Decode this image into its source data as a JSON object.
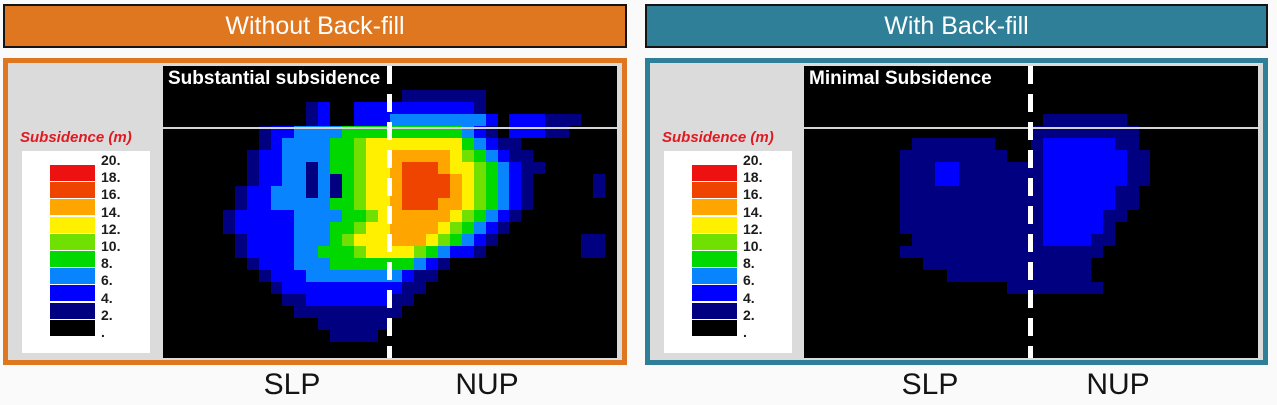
{
  "panels": [
    {
      "header": "Without Back-fill",
      "accent": "#de771f",
      "overlay_label": "Substantial subsidence",
      "axis_left": "SLP",
      "axis_right": "NUP"
    },
    {
      "header": "With Back-fill",
      "accent": "#2f7f99",
      "overlay_label": "Minimal Subsidence",
      "axis_left": "SLP",
      "axis_right": "NUP"
    }
  ],
  "legend": {
    "title": "Subsidence (m)",
    "title_color": "#e11a22",
    "ticks": [
      "20.",
      "18.",
      "16.",
      "14.",
      "12.",
      "10.",
      "8.",
      "6.",
      "4.",
      "2.",
      "."
    ],
    "swatches": [
      "#ee1111",
      "#ee4400",
      "#ffa500",
      "#fff000",
      "#6fe000",
      "#00d800",
      "#0984ff",
      "#0000ff",
      "#000080",
      "#000000"
    ]
  },
  "chart_data": [
    {
      "type": "heatmap",
      "title": "Without Back-fill",
      "annotation": "Substantial subsidence",
      "x_labels": [
        "SLP",
        "NUP"
      ],
      "value_units": "m",
      "value_range": [
        0,
        20
      ],
      "palette": {
        ".": {
          "color": "#000000",
          "range": [
            0,
            2
          ]
        },
        "1": {
          "color": "#000080",
          "range": [
            2,
            4
          ]
        },
        "2": {
          "color": "#0000ff",
          "range": [
            4,
            6
          ]
        },
        "3": {
          "color": "#0984ff",
          "range": [
            6,
            8
          ]
        },
        "4": {
          "color": "#00d800",
          "range": [
            8,
            10
          ]
        },
        "5": {
          "color": "#6fe000",
          "range": [
            10,
            12
          ]
        },
        "6": {
          "color": "#fff000",
          "range": [
            12,
            14
          ]
        },
        "7": {
          "color": "#ffa500",
          "range": [
            14,
            16
          ]
        },
        "8": {
          "color": "#ee4400",
          "range": [
            16,
            18
          ]
        },
        "9": {
          "color": "#ee1111",
          "range": [
            18,
            20
          ]
        }
      },
      "rows": [
        "......................................",
        "......................................",
        "....................1111111...........",
        "............12..22222222221...........",
        "............12..222333333332.222111...",
        "........12233334444444444321.22211....",
        "........1233334456666666643211........",
        ".......122333344566777776543211.......",
        ".......1223313445667888766543211......",
        ".......122331314566788887654321.....1.",
        "......1223331314566788887654321.....1.",
        "......1223333344566788877654321.......",
        ".....1222223333445677777654321........",
        ".....122222333445667777654321.........",
        "......1222233345666777654321.......11.",
        "......122223344456666543221........11.",
        ".......12223334444444321..............",
        "........122233333333211...............",
        ".........1222222222211................",
        "..........11222222211.................",
        "...........111111111..................",
        ".............111111...................",
        "..............1111....................",
        "......................................",
        "......................................"
      ]
    },
    {
      "type": "heatmap",
      "title": "With Back-fill",
      "annotation": "Minimal Subsidence",
      "x_labels": [
        "SLP",
        "NUP"
      ],
      "value_units": "m",
      "value_range": [
        0,
        20
      ],
      "palette": {
        ".": {
          "color": "#000000",
          "range": [
            0,
            2
          ]
        },
        "1": {
          "color": "#000080",
          "range": [
            2,
            4
          ]
        },
        "2": {
          "color": "#0000ff",
          "range": [
            4,
            6
          ]
        },
        "3": {
          "color": "#0984ff",
          "range": [
            6,
            8
          ]
        },
        "4": {
          "color": "#00d800",
          "range": [
            8,
            10
          ]
        },
        "5": {
          "color": "#6fe000",
          "range": [
            10,
            12
          ]
        },
        "6": {
          "color": "#fff000",
          "range": [
            12,
            14
          ]
        },
        "7": {
          "color": "#ffa500",
          "range": [
            14,
            16
          ]
        },
        "8": {
          "color": "#ee4400",
          "range": [
            16,
            18
          ]
        },
        "9": {
          "color": "#ee1111",
          "range": [
            18,
            20
          ]
        }
      },
      "rows": [
        "......................................",
        "......................................",
        "......................................",
        "......................................",
        "....................1111111...........",
        "...................111111111..........",
        ".........1111111...122222211..........",
        "........111111111..1222222211.........",
        "........111221111111222222211.........",
        "........111221111111222222211.........",
        "........11111111111122222211..........",
        "........11111111111122222211..........",
        "........1111111111112222211...........",
        "........111111111111222221............",
        ".........11111111111222211............",
        "........11111111111111111.............",
        "..........11111111111111..............",
        "............111111111111..............",
        ".................11111111.............",
        "......................................",
        "......................................",
        "......................................",
        "......................................",
        "......................................",
        "......................................"
      ]
    }
  ]
}
